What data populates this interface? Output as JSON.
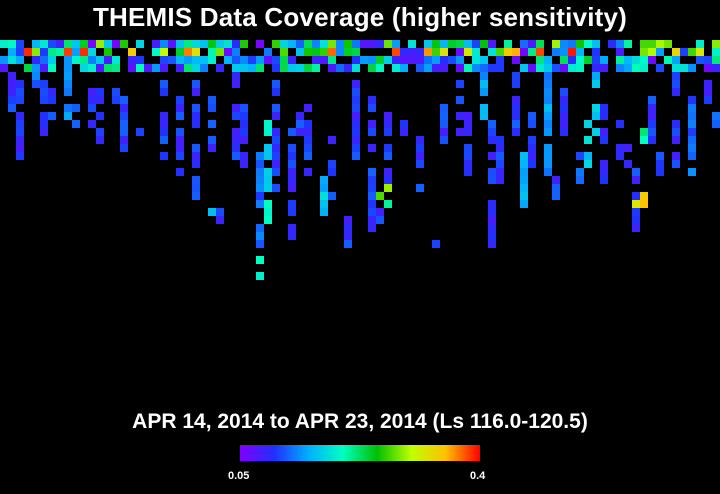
{
  "title": "THEMIS Data Coverage (higher sensitivity)",
  "subtitle": "APR 14, 2014 to APR 23, 2014 (Ls 116.0-120.5)",
  "colorbar": {
    "min_label": "0.05",
    "max_label": "0.4",
    "stops": [
      "#8000ff",
      "#2030ff",
      "#00b0ff",
      "#00ffc0",
      "#00c000",
      "#c0ff00",
      "#ffc000",
      "#ff0000"
    ]
  },
  "chart_data": {
    "type": "heatmap",
    "title": "THEMIS Data Coverage (higher sensitivity)",
    "subtitle": "APR 14, 2014 to APR 23, 2014 (Ls 116.0-120.5)",
    "grid": {
      "cols": 90,
      "rows": 30
    },
    "value_range": [
      0.05,
      0.4
    ],
    "top_band_rows": [
      0,
      1,
      2,
      3
    ],
    "columns": [
      {
        "col": 1,
        "from": 4,
        "to": 8,
        "v": 0.1
      },
      {
        "col": 2,
        "from": 3,
        "to": 14,
        "v": 0.1
      },
      {
        "col": 4,
        "from": 4,
        "to": 7,
        "v": 0.12
      },
      {
        "col": 5,
        "from": 5,
        "to": 11,
        "v": 0.1
      },
      {
        "col": 6,
        "from": 6,
        "to": 9,
        "v": 0.1
      },
      {
        "col": 8,
        "from": 4,
        "to": 9,
        "v": 0.13
      },
      {
        "col": 9,
        "from": 8,
        "to": 12,
        "v": 0.1
      },
      {
        "col": 11,
        "from": 5,
        "to": 10,
        "v": 0.1
      },
      {
        "col": 12,
        "from": 6,
        "to": 12,
        "v": 0.1
      },
      {
        "col": 14,
        "from": 5,
        "to": 8,
        "v": 0.12
      },
      {
        "col": 15,
        "from": 6,
        "to": 13,
        "v": 0.1
      },
      {
        "col": 17,
        "from": 10,
        "to": 11,
        "v": 0.1
      },
      {
        "col": 20,
        "from": 5,
        "to": 15,
        "v": 0.1
      },
      {
        "col": 22,
        "from": 6,
        "to": 16,
        "v": 0.1
      },
      {
        "col": 24,
        "from": 5,
        "to": 19,
        "v": 0.1
      },
      {
        "col": 26,
        "from": 7,
        "to": 13,
        "v": 0.1
      },
      {
        "col": 27,
        "from": 20,
        "to": 22,
        "v": 0.1
      },
      {
        "col": 29,
        "from": 4,
        "to": 14,
        "v": 0.1
      },
      {
        "col": 30,
        "from": 8,
        "to": 16,
        "v": 0.1
      },
      {
        "col": 32,
        "from": 13,
        "to": 27,
        "v": 0.12
      },
      {
        "col": 33,
        "from": 10,
        "to": 22,
        "v": 0.18
      },
      {
        "col": 34,
        "from": 4,
        "to": 18,
        "v": 0.1
      },
      {
        "col": 36,
        "from": 11,
        "to": 24,
        "v": 0.1
      },
      {
        "col": 37,
        "from": 8,
        "to": 12,
        "v": 0.1
      },
      {
        "col": 38,
        "from": 6,
        "to": 16,
        "v": 0.1
      },
      {
        "col": 40,
        "from": 17,
        "to": 22,
        "v": 0.15
      },
      {
        "col": 41,
        "from": 9,
        "to": 19,
        "v": 0.1
      },
      {
        "col": 43,
        "from": 22,
        "to": 25,
        "v": 0.1
      },
      {
        "col": 44,
        "from": 5,
        "to": 14,
        "v": 0.1
      },
      {
        "col": 46,
        "from": 6,
        "to": 23,
        "v": 0.1
      },
      {
        "col": 47,
        "from": 18,
        "to": 22,
        "v": 0.1
      },
      {
        "col": 48,
        "from": 9,
        "to": 19,
        "v": 0.1
      },
      {
        "col": 50,
        "from": 8,
        "to": 12,
        "v": 0.1
      },
      {
        "col": 52,
        "from": 12,
        "to": 18,
        "v": 0.1
      },
      {
        "col": 54,
        "from": 24,
        "to": 26,
        "v": 0.12
      },
      {
        "col": 55,
        "from": 4,
        "to": 14,
        "v": 0.1
      },
      {
        "col": 57,
        "from": 5,
        "to": 12,
        "v": 0.1
      },
      {
        "col": 58,
        "from": 8,
        "to": 16,
        "v": 0.1
      },
      {
        "col": 60,
        "from": 4,
        "to": 9,
        "v": 0.15
      },
      {
        "col": 61,
        "from": 10,
        "to": 27,
        "v": 0.1
      },
      {
        "col": 62,
        "from": 12,
        "to": 18,
        "v": 0.1
      },
      {
        "col": 64,
        "from": 4,
        "to": 12,
        "v": 0.1
      },
      {
        "col": 65,
        "from": 14,
        "to": 21,
        "v": 0.16
      },
      {
        "col": 66,
        "from": 8,
        "to": 15,
        "v": 0.1
      },
      {
        "col": 68,
        "from": 4,
        "to": 16,
        "v": 0.14
      },
      {
        "col": 69,
        "from": 17,
        "to": 20,
        "v": 0.1
      },
      {
        "col": 70,
        "from": 6,
        "to": 13,
        "v": 0.1
      },
      {
        "col": 72,
        "from": 14,
        "to": 19,
        "v": 0.12
      },
      {
        "col": 73,
        "from": 10,
        "to": 15,
        "v": 0.17
      },
      {
        "col": 74,
        "from": 4,
        "to": 9,
        "v": 0.16
      },
      {
        "col": 75,
        "from": 8,
        "to": 17,
        "v": 0.1
      },
      {
        "col": 77,
        "from": 10,
        "to": 14,
        "v": 0.1
      },
      {
        "col": 78,
        "from": 13,
        "to": 17,
        "v": 0.1
      },
      {
        "col": 79,
        "from": 16,
        "to": 23,
        "v": 0.1
      },
      {
        "col": 81,
        "from": 7,
        "to": 12,
        "v": 0.1
      },
      {
        "col": 82,
        "from": 13,
        "to": 16,
        "v": 0.1
      },
      {
        "col": 84,
        "from": 4,
        "to": 15,
        "v": 0.1
      },
      {
        "col": 86,
        "from": 7,
        "to": 16,
        "v": 0.12
      },
      {
        "col": 88,
        "from": 4,
        "to": 8,
        "v": 0.1
      },
      {
        "col": 89,
        "from": 9,
        "to": 12,
        "v": 0.12
      }
    ],
    "highlights": [
      {
        "col": 80,
        "row": 11,
        "v": 0.22
      },
      {
        "col": 80,
        "row": 12,
        "v": 0.2
      },
      {
        "col": 79,
        "row": 20,
        "v": 0.32
      },
      {
        "col": 80,
        "row": 19,
        "v": 0.34
      },
      {
        "col": 80,
        "row": 20,
        "v": 0.35
      },
      {
        "col": 47,
        "row": 19,
        "v": 0.27
      },
      {
        "col": 48,
        "row": 18,
        "v": 0.29
      },
      {
        "col": 48,
        "row": 20,
        "v": 0.21
      },
      {
        "col": 74,
        "row": 11,
        "v": 0.17
      },
      {
        "col": 33,
        "row": 20,
        "v": 0.2
      },
      {
        "col": 32,
        "row": 27,
        "v": 0.2
      },
      {
        "col": 32,
        "row": 29,
        "v": 0.19
      },
      {
        "col": 26,
        "row": 21,
        "v": 0.16
      },
      {
        "col": 40,
        "row": 19,
        "v": 0.18
      }
    ]
  }
}
